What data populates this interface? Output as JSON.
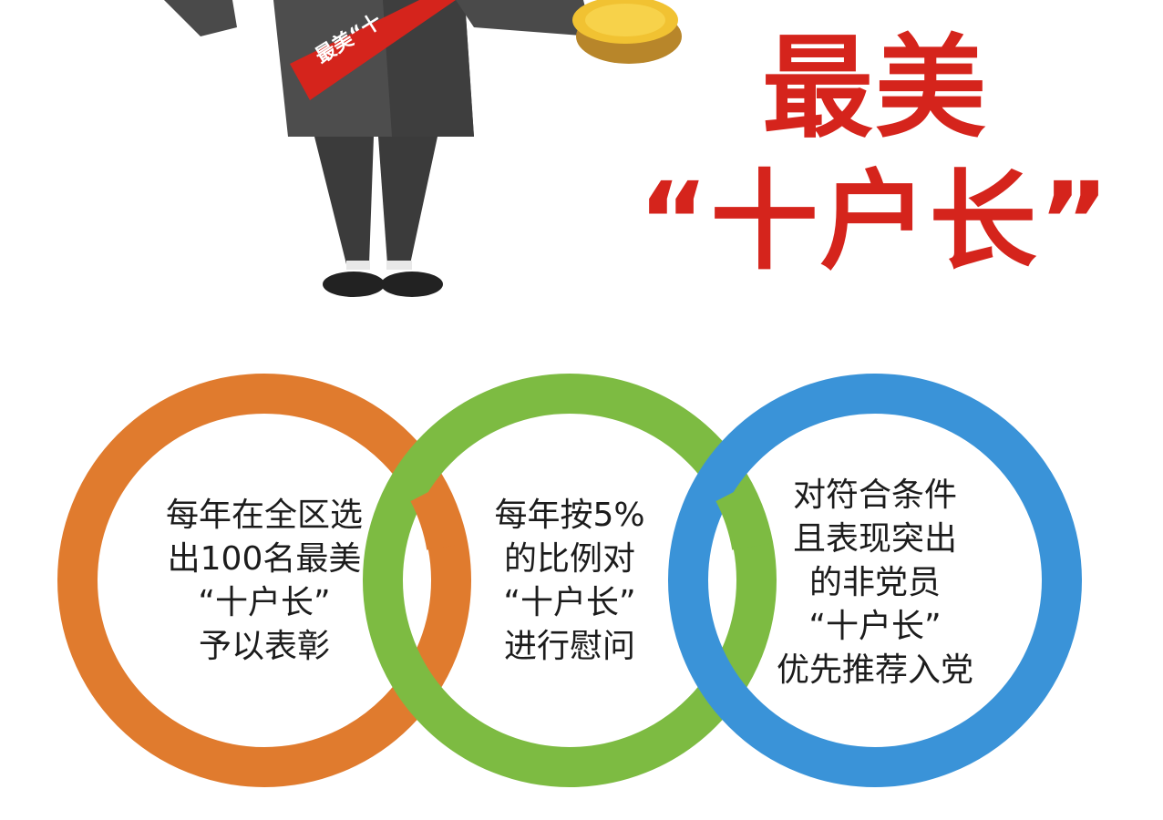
{
  "title": {
    "line1": "最美",
    "line2": "“十户长”"
  },
  "sash_text": "最美“十",
  "colors": {
    "title_red": "#d5241c",
    "ring_orange": "#e07b2e",
    "ring_green": "#7dbb42",
    "ring_blue": "#3a93d8"
  },
  "rings": [
    {
      "name": "orange",
      "lines": [
        "每年在全区选",
        "出100名最美",
        "“十户长”",
        "予以表彰"
      ]
    },
    {
      "name": "green",
      "lines": [
        "每年按5%",
        "的比例对",
        "“十户长”",
        "进行慰问"
      ]
    },
    {
      "name": "blue",
      "lines": [
        "对符合条件",
        "且表现突出",
        "的非党员",
        "“十户长”",
        "优先推荐入党"
      ]
    }
  ]
}
